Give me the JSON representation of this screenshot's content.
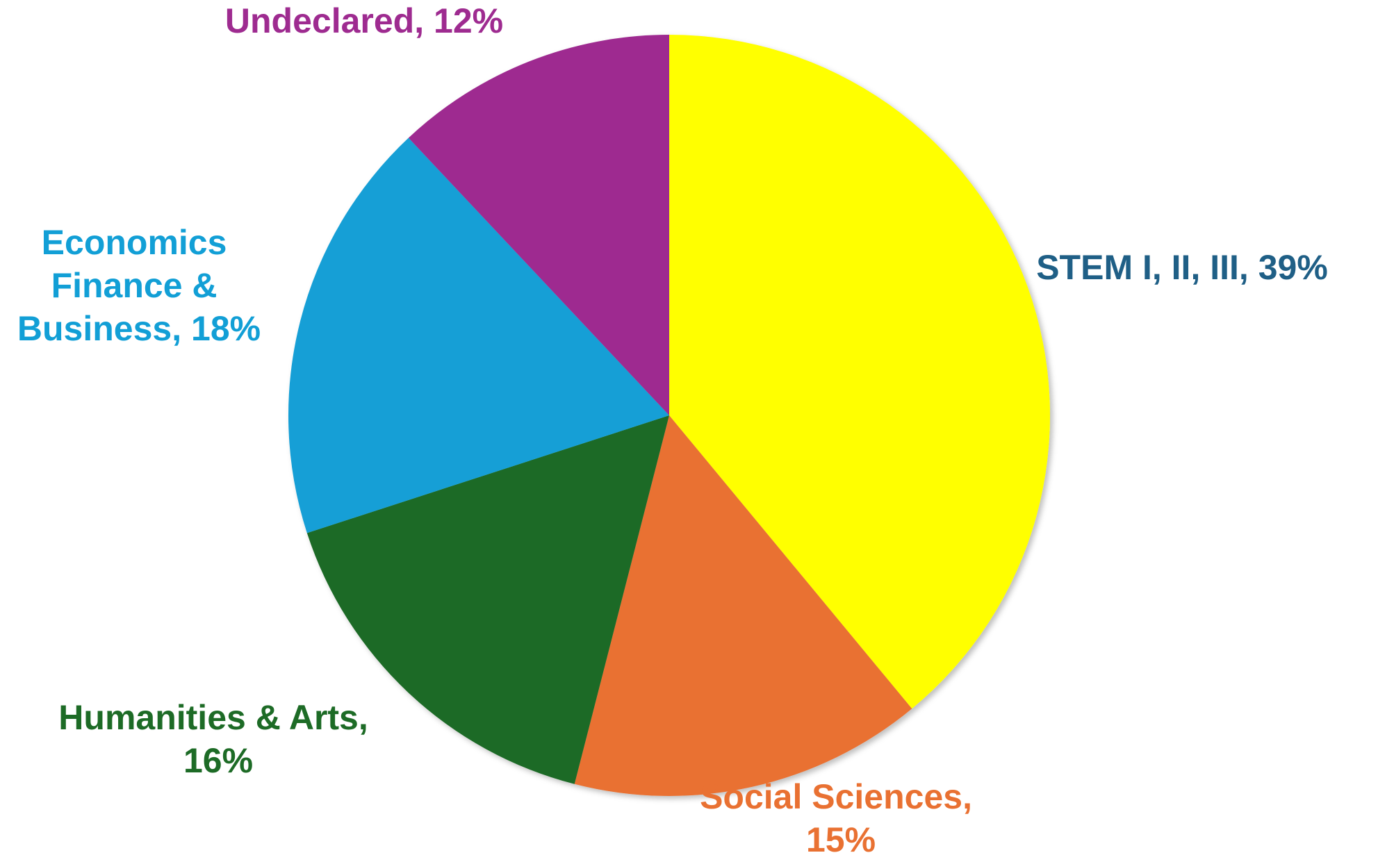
{
  "chart_data": {
    "type": "pie",
    "title": "",
    "slices": [
      {
        "label": "STEM I, II, III",
        "value": 39,
        "value_label": "39%",
        "color": "#FFFF00",
        "label_color": "#1F5F86"
      },
      {
        "label": "Social Sciences",
        "value": 15,
        "value_label": "15%",
        "color": "#E97132",
        "label_color": "#E97132"
      },
      {
        "label": "Humanities & Arts",
        "value": 16,
        "value_label": "16%",
        "color": "#1D6B26",
        "label_color": "#1D6B26"
      },
      {
        "label": "Economics Finance & Business",
        "value": 18,
        "value_label": "18%",
        "color": "#129FD6",
        "label_color": "#129FD6"
      },
      {
        "label": "Undeclared",
        "value": 12,
        "value_label": "12%",
        "color": "#9E2B90",
        "label_color": "#9E2B90"
      }
    ],
    "start_angle_deg": 0,
    "direction": "clockwise",
    "legend": "none"
  }
}
